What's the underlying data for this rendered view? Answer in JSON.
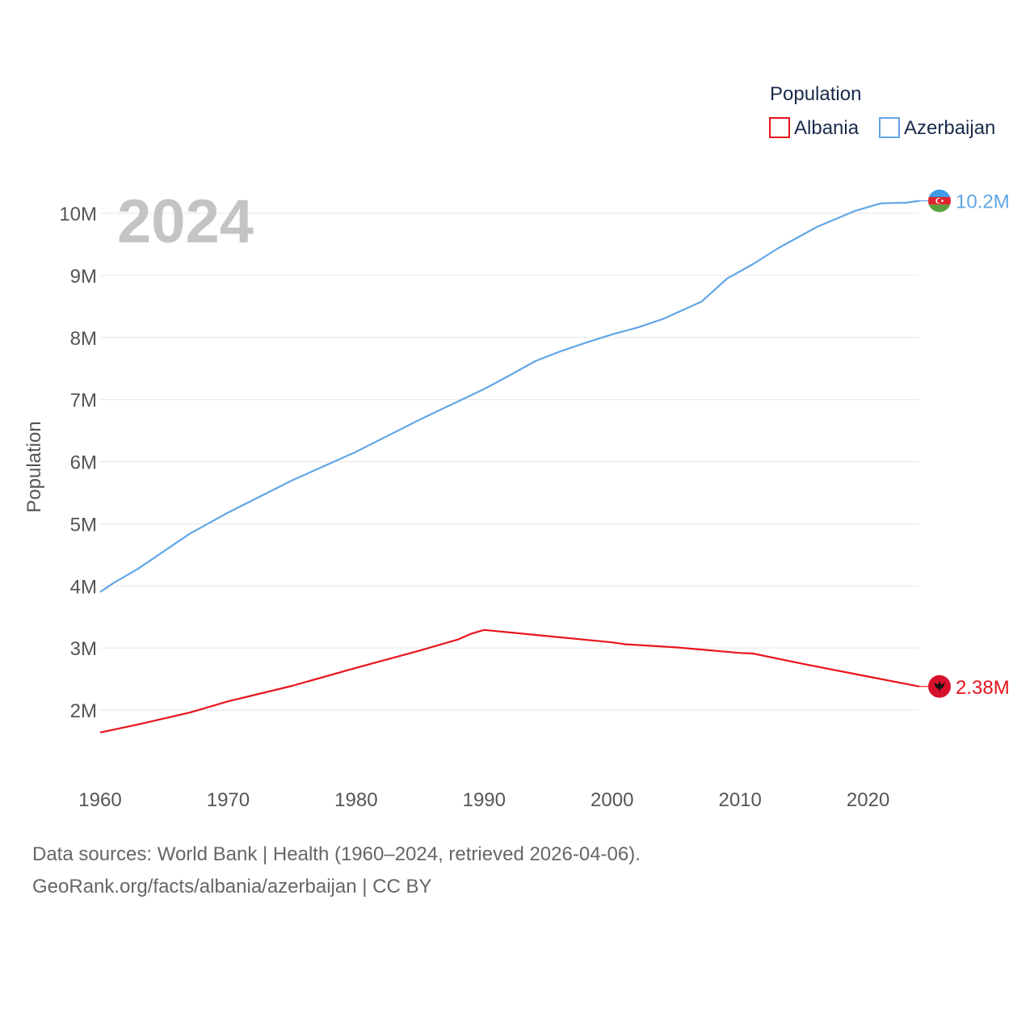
{
  "chart_data": {
    "type": "line",
    "display_year": "2024",
    "ylabel": "Population",
    "xlabel": "",
    "xlim": [
      1960,
      2024
    ],
    "ylim": [
      1300000,
      10800000
    ],
    "x_ticks": [
      1960,
      1970,
      1980,
      1990,
      2000,
      2010,
      2020
    ],
    "x_tick_labels": [
      "1960",
      "1970",
      "1980",
      "1990",
      "2000",
      "2010",
      "2020"
    ],
    "y_ticks": [
      2000000,
      3000000,
      4000000,
      5000000,
      6000000,
      7000000,
      8000000,
      9000000,
      10000000
    ],
    "y_tick_labels": [
      "2M",
      "3M",
      "4M",
      "5M",
      "6M",
      "7M",
      "8M",
      "9M",
      "10M"
    ],
    "legend_title": "Population",
    "legend_position": "top-right",
    "grid": true,
    "series": [
      {
        "name": "Albania",
        "color": "#e8141c",
        "end_label": "2.38M",
        "flag_icon": "albania-flag-icon",
        "points": [
          [
            1960,
            1640000
          ],
          [
            1963,
            1770000
          ],
          [
            1967,
            1960000
          ],
          [
            1970,
            2140000
          ],
          [
            1975,
            2390000
          ],
          [
            1980,
            2680000
          ],
          [
            1985,
            2960000
          ],
          [
            1988,
            3140000
          ],
          [
            1989,
            3230000
          ],
          [
            1990,
            3290000
          ],
          [
            1995,
            3190000
          ],
          [
            2000,
            3090000
          ],
          [
            2001,
            3060000
          ],
          [
            2005,
            3010000
          ],
          [
            2010,
            2920000
          ],
          [
            2011,
            2910000
          ],
          [
            2015,
            2740000
          ],
          [
            2020,
            2540000
          ],
          [
            2024,
            2380000
          ]
        ]
      },
      {
        "name": "Azerbaijan",
        "color": "#62a6e6",
        "end_label": "10.2M",
        "flag_icon": "azerbaijan-flag-icon",
        "points": [
          [
            1960,
            3900000
          ],
          [
            1961,
            4040000
          ],
          [
            1963,
            4280000
          ],
          [
            1965,
            4560000
          ],
          [
            1967,
            4840000
          ],
          [
            1970,
            5180000
          ],
          [
            1975,
            5700000
          ],
          [
            1980,
            6160000
          ],
          [
            1985,
            6680000
          ],
          [
            1990,
            7170000
          ],
          [
            1992,
            7390000
          ],
          [
            1994,
            7620000
          ],
          [
            1996,
            7780000
          ],
          [
            1998,
            7920000
          ],
          [
            2000,
            8050000
          ],
          [
            2002,
            8160000
          ],
          [
            2004,
            8300000
          ],
          [
            2007,
            8580000
          ],
          [
            2009,
            8950000
          ],
          [
            2011,
            9180000
          ],
          [
            2013,
            9440000
          ],
          [
            2016,
            9780000
          ],
          [
            2019,
            10040000
          ],
          [
            2021,
            10160000
          ],
          [
            2023,
            10170000
          ],
          [
            2024,
            10200000
          ]
        ]
      }
    ]
  },
  "footer": {
    "line1": "Data sources: World Bank | Health (1960–2024, retrieved 2026-04-06).",
    "line2": "GeoRank.org/facts/albania/azerbaijan | CC BY"
  }
}
